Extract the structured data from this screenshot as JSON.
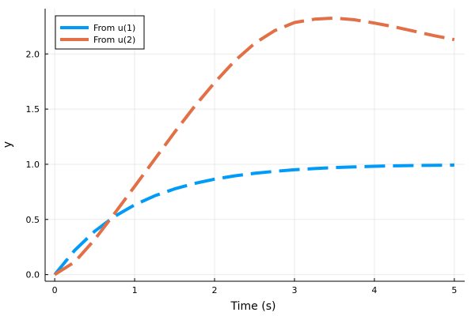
{
  "chart_data": {
    "type": "line",
    "xlabel": "Time (s)",
    "ylabel": "y",
    "xlim": [
      -0.12,
      5.13
    ],
    "ylim": [
      -0.06,
      2.41
    ],
    "x_ticks": [
      0,
      1,
      2,
      3,
      4,
      5
    ],
    "y_ticks": [
      0.0,
      0.5,
      1.0,
      1.5,
      2.0
    ],
    "x_tick_labels": [
      "0",
      "1",
      "2",
      "3",
      "4",
      "5"
    ],
    "y_tick_labels": [
      "0.0",
      "0.5",
      "1.0",
      "1.5",
      "2.0"
    ],
    "grid": true,
    "legend_position": "top-left",
    "x": [
      0,
      0.25,
      0.5,
      0.75,
      1,
      1.25,
      1.5,
      1.75,
      2,
      2.25,
      2.5,
      2.75,
      3,
      3.25,
      3.5,
      3.75,
      4,
      4.25,
      4.5,
      4.75,
      5
    ],
    "series": [
      {
        "name": "From u(1)",
        "color": "#009af9",
        "line_style": "dashed",
        "values": [
          0.0,
          0.221,
          0.393,
          0.528,
          0.632,
          0.714,
          0.777,
          0.826,
          0.865,
          0.895,
          0.918,
          0.936,
          0.95,
          0.961,
          0.97,
          0.976,
          0.982,
          0.986,
          0.989,
          0.991,
          0.993
        ]
      },
      {
        "name": "From u(2)",
        "color": "#e26f46",
        "line_style": "dashed",
        "values": [
          0.0,
          0.115,
          0.318,
          0.555,
          0.8,
          1.045,
          1.29,
          1.525,
          1.74,
          1.935,
          2.095,
          2.21,
          2.285,
          2.315,
          2.325,
          2.31,
          2.28,
          2.245,
          2.205,
          2.165,
          2.13
        ]
      }
    ]
  }
}
